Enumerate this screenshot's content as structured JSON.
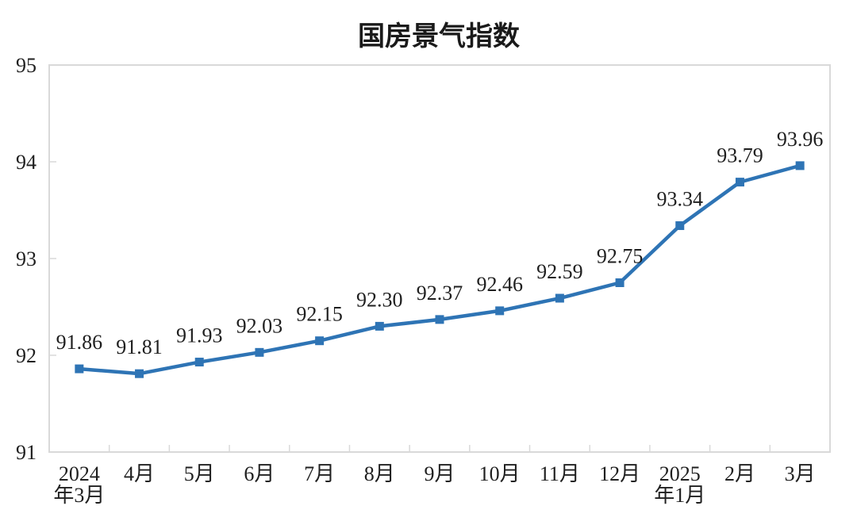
{
  "page": {
    "background_color": "#ffffff"
  },
  "chart_data": {
    "type": "line",
    "title": "国房景气指数",
    "categories": [
      [
        "2024",
        "年3月"
      ],
      [
        "4月"
      ],
      [
        "5月"
      ],
      [
        "6月"
      ],
      [
        "7月"
      ],
      [
        "8月"
      ],
      [
        "9月"
      ],
      [
        "10月"
      ],
      [
        "11月"
      ],
      [
        "12月"
      ],
      [
        "2025",
        "年1月"
      ],
      [
        "2月"
      ],
      [
        "3月"
      ]
    ],
    "values": [
      91.86,
      91.81,
      91.93,
      92.03,
      92.15,
      92.3,
      92.37,
      92.46,
      92.59,
      92.75,
      93.34,
      93.79,
      93.96
    ],
    "labels": [
      "91.86",
      "91.81",
      "91.93",
      "92.03",
      "92.15",
      "92.30",
      "92.37",
      "92.46",
      "92.59",
      "92.75",
      "93.34",
      "93.79",
      "93.96"
    ],
    "xlabel": "",
    "ylabel": "",
    "ylim": [
      91,
      95
    ],
    "yticks": [
      91,
      92,
      93,
      94,
      95
    ],
    "grid": false,
    "legend_position": "none",
    "marker": "square",
    "line_color": "#2E74B5",
    "axis_color": "#D9D9D9",
    "text_color": "#1F1F1F"
  }
}
